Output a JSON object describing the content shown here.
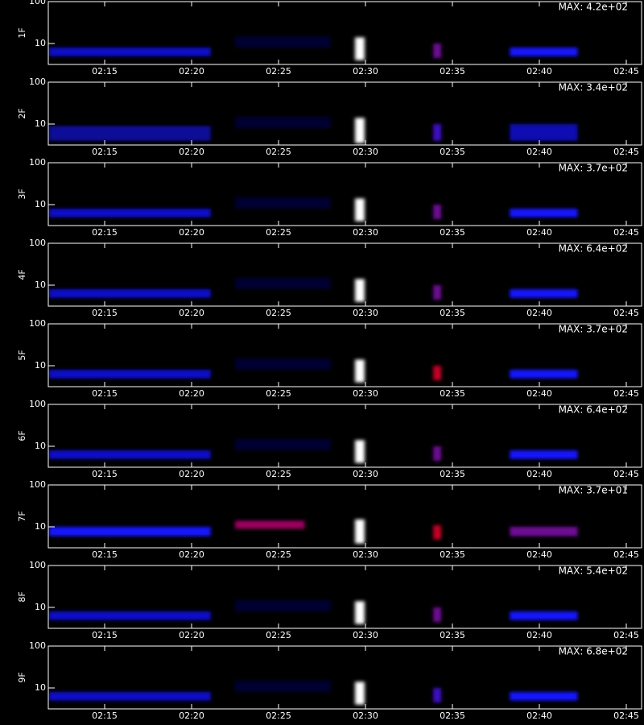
{
  "chart_data": [
    {
      "type": "heatmap",
      "ylabel": "1F",
      "annotation": "MAX: 4.2e+02",
      "log_y": true,
      "xlim": [
        11.76,
        45.88
      ],
      "ylim": [
        3.16,
        100
      ],
      "xticks": [
        {
          "value": 15,
          "label": "02:15"
        },
        {
          "value": 20,
          "label": "02:20"
        },
        {
          "value": 25,
          "label": "02:25"
        },
        {
          "value": 30,
          "label": "02:30"
        },
        {
          "value": 35,
          "label": "02:35"
        },
        {
          "value": 40,
          "label": "02:40"
        },
        {
          "value": 45,
          "label": "02:45"
        }
      ],
      "yticks": [
        10,
        100
      ],
      "events": [
        {
          "x": [
            11.8,
            21.1
          ],
          "y": [
            5,
            8
          ],
          "intensity": 0.4
        },
        {
          "x": [
            22.5,
            28
          ],
          "y": [
            8,
            15
          ],
          "intensity": 0.1
        },
        {
          "x": [
            29.4,
            29.95
          ],
          "y": [
            4,
            14
          ],
          "intensity": 1
        },
        {
          "x": [
            33.9,
            34.35
          ],
          "y": [
            4.5,
            10
          ],
          "intensity": 0.6
        },
        {
          "x": [
            38.3,
            42.2
          ],
          "y": [
            5,
            8
          ],
          "intensity": 0.5
        }
      ]
    },
    {
      "type": "heatmap",
      "ylabel": "2F",
      "annotation": "MAX: 3.4e+02",
      "log_y": true,
      "xlim": [
        11.76,
        45.88
      ],
      "ylim": [
        3.16,
        100
      ],
      "xticks": [
        {
          "value": 15,
          "label": "02:15"
        },
        {
          "value": 20,
          "label": "02:20"
        },
        {
          "value": 25,
          "label": "02:25"
        },
        {
          "value": 30,
          "label": "02:30"
        },
        {
          "value": 35,
          "label": "02:35"
        },
        {
          "value": 40,
          "label": "02:40"
        },
        {
          "value": 45,
          "label": "02:45"
        }
      ],
      "yticks": [
        10,
        100
      ],
      "events": [
        {
          "x": [
            11.8,
            21.1
          ],
          "y": [
            4,
            9
          ],
          "intensity": 0.3
        },
        {
          "x": [
            22.5,
            28
          ],
          "y": [
            8,
            15
          ],
          "intensity": 0.1
        },
        {
          "x": [
            29.4,
            29.95
          ],
          "y": [
            3.5,
            14
          ],
          "intensity": 1
        },
        {
          "x": [
            33.9,
            34.35
          ],
          "y": [
            4,
            10
          ],
          "intensity": 0.55
        },
        {
          "x": [
            38.3,
            42.2
          ],
          "y": [
            4,
            10
          ],
          "intensity": 0.35
        }
      ]
    },
    {
      "type": "heatmap",
      "ylabel": "3F",
      "annotation": "MAX: 3.7e+02",
      "log_y": true,
      "xlim": [
        11.76,
        45.88
      ],
      "ylim": [
        3.16,
        100
      ],
      "xticks": [
        {
          "value": 15,
          "label": "02:15"
        },
        {
          "value": 20,
          "label": "02:20"
        },
        {
          "value": 25,
          "label": "02:25"
        },
        {
          "value": 30,
          "label": "02:30"
        },
        {
          "value": 35,
          "label": "02:35"
        },
        {
          "value": 40,
          "label": "02:40"
        },
        {
          "value": 45,
          "label": "02:45"
        }
      ],
      "yticks": [
        10,
        100
      ],
      "events": [
        {
          "x": [
            11.8,
            21.1
          ],
          "y": [
            5,
            8
          ],
          "intensity": 0.4
        },
        {
          "x": [
            22.5,
            28
          ],
          "y": [
            8,
            15
          ],
          "intensity": 0.1
        },
        {
          "x": [
            29.4,
            29.95
          ],
          "y": [
            4,
            14
          ],
          "intensity": 1
        },
        {
          "x": [
            33.9,
            34.35
          ],
          "y": [
            4.5,
            10
          ],
          "intensity": 0.6
        },
        {
          "x": [
            38.3,
            42.2
          ],
          "y": [
            5,
            8
          ],
          "intensity": 0.5
        }
      ]
    },
    {
      "type": "heatmap",
      "ylabel": "4F",
      "annotation": "MAX: 6.4e+02",
      "log_y": true,
      "xlim": [
        11.76,
        45.88
      ],
      "ylim": [
        3.16,
        100
      ],
      "xticks": [
        {
          "value": 15,
          "label": "02:15"
        },
        {
          "value": 20,
          "label": "02:20"
        },
        {
          "value": 25,
          "label": "02:25"
        },
        {
          "value": 30,
          "label": "02:30"
        },
        {
          "value": 35,
          "label": "02:35"
        },
        {
          "value": 40,
          "label": "02:40"
        },
        {
          "value": 45,
          "label": "02:45"
        }
      ],
      "yticks": [
        10,
        100
      ],
      "events": [
        {
          "x": [
            11.8,
            21.1
          ],
          "y": [
            5,
            8
          ],
          "intensity": 0.4
        },
        {
          "x": [
            22.5,
            28
          ],
          "y": [
            8,
            15
          ],
          "intensity": 0.1
        },
        {
          "x": [
            29.4,
            29.95
          ],
          "y": [
            4,
            14
          ],
          "intensity": 1
        },
        {
          "x": [
            33.9,
            34.35
          ],
          "y": [
            4.5,
            10
          ],
          "intensity": 0.6
        },
        {
          "x": [
            38.3,
            42.2
          ],
          "y": [
            5,
            8
          ],
          "intensity": 0.5
        }
      ]
    },
    {
      "type": "heatmap",
      "ylabel": "5F",
      "annotation": "MAX: 3.7e+02",
      "log_y": true,
      "xlim": [
        11.76,
        45.88
      ],
      "ylim": [
        3.16,
        100
      ],
      "xticks": [
        {
          "value": 15,
          "label": "02:15"
        },
        {
          "value": 20,
          "label": "02:20"
        },
        {
          "value": 25,
          "label": "02:25"
        },
        {
          "value": 30,
          "label": "02:30"
        },
        {
          "value": 35,
          "label": "02:35"
        },
        {
          "value": 40,
          "label": "02:40"
        },
        {
          "value": 45,
          "label": "02:45"
        }
      ],
      "yticks": [
        10,
        100
      ],
      "events": [
        {
          "x": [
            11.8,
            21.1
          ],
          "y": [
            5,
            8
          ],
          "intensity": 0.4
        },
        {
          "x": [
            22.5,
            28
          ],
          "y": [
            8,
            15
          ],
          "intensity": 0.1
        },
        {
          "x": [
            29.4,
            29.95
          ],
          "y": [
            4,
            14
          ],
          "intensity": 1
        },
        {
          "x": [
            33.9,
            34.35
          ],
          "y": [
            4.5,
            10
          ],
          "intensity": 0.7
        },
        {
          "x": [
            38.3,
            42.2
          ],
          "y": [
            5,
            8
          ],
          "intensity": 0.5
        }
      ]
    },
    {
      "type": "heatmap",
      "ylabel": "6F",
      "annotation": "MAX: 6.4e+02",
      "log_y": true,
      "xlim": [
        11.76,
        45.88
      ],
      "ylim": [
        3.16,
        100
      ],
      "xticks": [
        {
          "value": 15,
          "label": "02:15"
        },
        {
          "value": 20,
          "label": "02:20"
        },
        {
          "value": 25,
          "label": "02:25"
        },
        {
          "value": 30,
          "label": "02:30"
        },
        {
          "value": 35,
          "label": "02:35"
        },
        {
          "value": 40,
          "label": "02:40"
        },
        {
          "value": 45,
          "label": "02:45"
        }
      ],
      "yticks": [
        10,
        100
      ],
      "events": [
        {
          "x": [
            11.8,
            21.1
          ],
          "y": [
            5,
            8
          ],
          "intensity": 0.4
        },
        {
          "x": [
            22.5,
            28
          ],
          "y": [
            8,
            15
          ],
          "intensity": 0.1
        },
        {
          "x": [
            29.4,
            29.95
          ],
          "y": [
            4,
            14
          ],
          "intensity": 1
        },
        {
          "x": [
            33.9,
            34.35
          ],
          "y": [
            4.5,
            10
          ],
          "intensity": 0.6
        },
        {
          "x": [
            38.3,
            42.2
          ],
          "y": [
            5,
            8
          ],
          "intensity": 0.5
        }
      ]
    },
    {
      "type": "heatmap",
      "ylabel": "7F",
      "annotation": "MAX: 3.7e+01",
      "log_y": true,
      "xlim": [
        11.76,
        45.88
      ],
      "ylim": [
        3.16,
        100
      ],
      "xticks": [
        {
          "value": 15,
          "label": "02:15"
        },
        {
          "value": 20,
          "label": "02:20"
        },
        {
          "value": 25,
          "label": "02:25"
        },
        {
          "value": 30,
          "label": "02:30"
        },
        {
          "value": 35,
          "label": "02:35"
        },
        {
          "value": 40,
          "label": "02:40"
        },
        {
          "value": 45,
          "label": "02:45"
        }
      ],
      "yticks": [
        10,
        100
      ],
      "events": [
        {
          "x": [
            11.8,
            21.1
          ],
          "y": [
            6,
            10
          ],
          "intensity": 0.5
        },
        {
          "x": [
            22.5,
            26.5
          ],
          "y": [
            9,
            14
          ],
          "intensity": 0.65
        },
        {
          "x": [
            29.4,
            29.95
          ],
          "y": [
            4,
            15
          ],
          "intensity": 1
        },
        {
          "x": [
            33.9,
            34.35
          ],
          "y": [
            5,
            11
          ],
          "intensity": 0.7
        },
        {
          "x": [
            38.3,
            42.2
          ],
          "y": [
            6,
            10
          ],
          "intensity": 0.6
        }
      ]
    },
    {
      "type": "heatmap",
      "ylabel": "8F",
      "annotation": "MAX: 5.4e+02",
      "log_y": true,
      "xlim": [
        11.76,
        45.88
      ],
      "ylim": [
        3.16,
        100
      ],
      "xticks": [
        {
          "value": 15,
          "label": "02:15"
        },
        {
          "value": 20,
          "label": "02:20"
        },
        {
          "value": 25,
          "label": "02:25"
        },
        {
          "value": 30,
          "label": "02:30"
        },
        {
          "value": 35,
          "label": "02:35"
        },
        {
          "value": 40,
          "label": "02:40"
        },
        {
          "value": 45,
          "label": "02:45"
        }
      ],
      "yticks": [
        10,
        100
      ],
      "events": [
        {
          "x": [
            11.8,
            21.1
          ],
          "y": [
            5,
            8
          ],
          "intensity": 0.4
        },
        {
          "x": [
            22.5,
            28
          ],
          "y": [
            8,
            15
          ],
          "intensity": 0.1
        },
        {
          "x": [
            29.4,
            29.95
          ],
          "y": [
            4,
            14
          ],
          "intensity": 1
        },
        {
          "x": [
            33.9,
            34.35
          ],
          "y": [
            4.5,
            10
          ],
          "intensity": 0.6
        },
        {
          "x": [
            38.3,
            42.2
          ],
          "y": [
            5,
            8
          ],
          "intensity": 0.5
        }
      ]
    },
    {
      "type": "heatmap",
      "ylabel": "9F",
      "annotation": "MAX: 6.8e+02",
      "log_y": true,
      "xlim": [
        11.76,
        45.88
      ],
      "ylim": [
        3.16,
        100
      ],
      "xticks": [
        {
          "value": 15,
          "label": "02:15"
        },
        {
          "value": 20,
          "label": "02:20"
        },
        {
          "value": 25,
          "label": "02:25"
        },
        {
          "value": 30,
          "label": "02:30"
        },
        {
          "value": 35,
          "label": "02:35"
        },
        {
          "value": 40,
          "label": "02:40"
        },
        {
          "value": 45,
          "label": "02:45"
        }
      ],
      "yticks": [
        10,
        100
      ],
      "events": [
        {
          "x": [
            11.8,
            21.1
          ],
          "y": [
            5,
            8
          ],
          "intensity": 0.4
        },
        {
          "x": [
            22.5,
            28
          ],
          "y": [
            8,
            15
          ],
          "intensity": 0.1
        },
        {
          "x": [
            29.4,
            29.95
          ],
          "y": [
            4,
            14
          ],
          "intensity": 1
        },
        {
          "x": [
            33.9,
            34.35
          ],
          "y": [
            4.5,
            10
          ],
          "intensity": 0.55
        },
        {
          "x": [
            38.3,
            42.2
          ],
          "y": [
            5,
            8
          ],
          "intensity": 0.5
        }
      ]
    }
  ]
}
